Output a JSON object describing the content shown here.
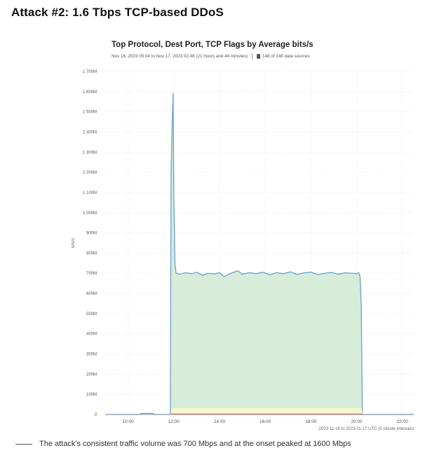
{
  "heading": "Attack #2: 1.6 Tbps TCP-based DDoS",
  "caption": "The attack's consistent traffic volume was 700 Mbps and at the onset peaked at 1600 Mbps",
  "chart_data": {
    "type": "area",
    "title": "Top Protocol, Dest Port, TCP Flags by Average bits/s",
    "subtitle": "Nov 16, 2023 05:04 to Nov 17, 2023 02:48 (21 hours and 44 minutes)",
    "sources_label": "148 of 148 data sources",
    "ylabel": "bits/s",
    "xlabel": "2023-11-16 to 2023-11-17 UTC (5 minute intervals)",
    "ylim": [
      0,
      1700
    ],
    "xlim": [
      9.0,
      22.5
    ],
    "y_ticks": [
      {
        "value": 1700,
        "label": "1 700M"
      },
      {
        "value": 1600,
        "label": "1 600M"
      },
      {
        "value": 1500,
        "label": "1 500M"
      },
      {
        "value": 1400,
        "label": "1 400M"
      },
      {
        "value": 1300,
        "label": "1 300M"
      },
      {
        "value": 1200,
        "label": "1 200M"
      },
      {
        "value": 1100,
        "label": "1 100M"
      },
      {
        "value": 1000,
        "label": "1 000M"
      },
      {
        "value": 900,
        "label": "900M"
      },
      {
        "value": 800,
        "label": "800M"
      },
      {
        "value": 700,
        "label": "700M"
      },
      {
        "value": 600,
        "label": "600M"
      },
      {
        "value": 500,
        "label": "500M"
      },
      {
        "value": 400,
        "label": "400M"
      },
      {
        "value": 300,
        "label": "300M"
      },
      {
        "value": 200,
        "label": "200M"
      },
      {
        "value": 100,
        "label": "100M"
      },
      {
        "value": 0,
        "label": "0"
      }
    ],
    "x_ticks": [
      {
        "value": 10,
        "label": "10:00"
      },
      {
        "value": 12,
        "label": "12:00"
      },
      {
        "value": 14,
        "label": "14:00"
      },
      {
        "value": 16,
        "label": "16:00"
      },
      {
        "value": 18,
        "label": "18:00"
      },
      {
        "value": 20,
        "label": "20:00"
      },
      {
        "value": 22,
        "label": "22:00"
      }
    ],
    "grid": true,
    "series": [
      {
        "color": "#6a9fd8",
        "fill": "#d7ecd9",
        "points": [
          [
            9.0,
            0
          ],
          [
            10.5,
            0
          ],
          [
            10.55,
            5
          ],
          [
            11.1,
            5
          ],
          [
            11.15,
            0
          ],
          [
            11.85,
            0
          ],
          [
            11.88,
            1200
          ],
          [
            11.93,
            1450
          ],
          [
            11.97,
            1590
          ],
          [
            12.0,
            1100
          ],
          [
            12.05,
            750
          ],
          [
            12.1,
            700
          ],
          [
            12.25,
            695
          ],
          [
            12.5,
            702
          ],
          [
            12.8,
            698
          ],
          [
            13.0,
            705
          ],
          [
            13.25,
            690
          ],
          [
            13.5,
            700
          ],
          [
            13.75,
            696
          ],
          [
            14.0,
            703
          ],
          [
            14.2,
            684
          ],
          [
            14.5,
            700
          ],
          [
            14.8,
            712
          ],
          [
            15.0,
            695
          ],
          [
            15.3,
            703
          ],
          [
            15.6,
            698
          ],
          [
            15.9,
            705
          ],
          [
            16.2,
            692
          ],
          [
            16.5,
            703
          ],
          [
            16.8,
            698
          ],
          [
            17.1,
            707
          ],
          [
            17.4,
            694
          ],
          [
            17.7,
            702
          ],
          [
            18.0,
            705
          ],
          [
            18.3,
            693
          ],
          [
            18.6,
            700
          ],
          [
            18.9,
            704
          ],
          [
            19.2,
            695
          ],
          [
            19.5,
            702
          ],
          [
            19.8,
            700
          ],
          [
            20.0,
            698
          ],
          [
            20.1,
            702
          ],
          [
            20.15,
            680
          ],
          [
            20.2,
            540
          ],
          [
            20.25,
            0
          ],
          [
            22.5,
            0
          ]
        ]
      },
      {
        "color": "#f3f7c4",
        "fill": "#f6f8cf",
        "points": [
          [
            11.88,
            0
          ],
          [
            11.9,
            30
          ],
          [
            20.2,
            30
          ],
          [
            20.25,
            0
          ]
        ]
      },
      {
        "color": "#e85c5c",
        "fill": "none",
        "points": [
          [
            11.88,
            2
          ],
          [
            20.25,
            2
          ]
        ]
      }
    ]
  }
}
